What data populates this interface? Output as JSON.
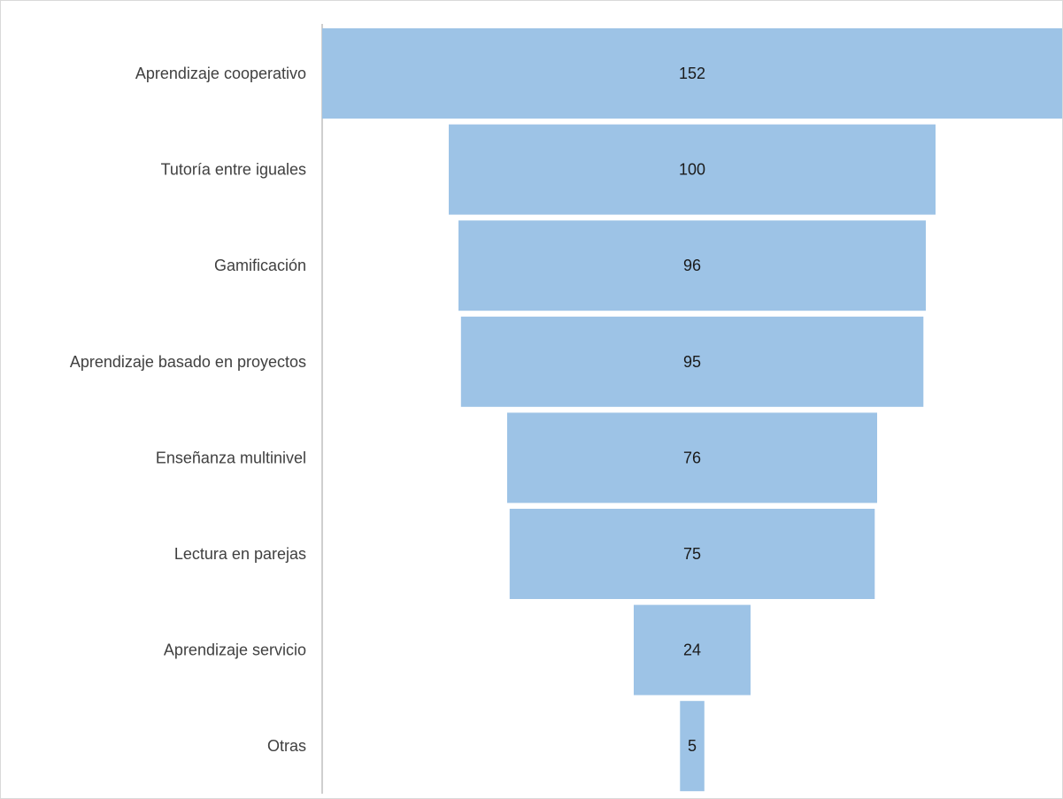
{
  "chart_data": {
    "type": "funnel",
    "categories": [
      "Aprendizaje cooperativo",
      "Tutoría entre iguales",
      "Gamificación",
      "Aprendizaje basado en proyectos",
      "Enseñanza multinivel",
      "Lectura en parejas",
      "Aprendizaje servicio",
      "Otras"
    ],
    "values": [
      152,
      100,
      96,
      95,
      76,
      75,
      24,
      5
    ],
    "title": "",
    "xlabel": "",
    "ylabel": "",
    "data_labels": true,
    "legend": "none",
    "grid": false,
    "colors": {
      "bar": "#9dc3e6",
      "axis": "#bfbfbf",
      "label_text": "#404040",
      "value_text": "#1a1a1a"
    }
  }
}
